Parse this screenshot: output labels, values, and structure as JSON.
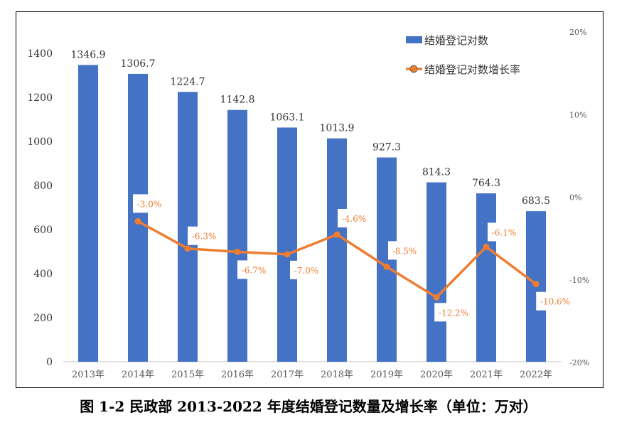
{
  "caption": "图 1-2  民政部 2013-2022 年度结婚登记数量及增长率（单位：万对）",
  "chart_data": {
    "type": "bar+line",
    "categories": [
      "2013年",
      "2014年",
      "2015年",
      "2016年",
      "2017年",
      "2018年",
      "2019年",
      "2020年",
      "2021年",
      "2022年"
    ],
    "series": [
      {
        "name": "结婚登记对数",
        "type": "bar",
        "axis": "left",
        "color": "#4472C4",
        "values": [
          1346.9,
          1306.7,
          1224.7,
          1142.8,
          1063.1,
          1013.9,
          927.3,
          814.3,
          764.3,
          683.5
        ],
        "labels": [
          "1346.9",
          "1306.7",
          "1224.7",
          "1142.8",
          "1063.1",
          "1013.9",
          "927.3",
          "814.3",
          "764.3",
          "683.5"
        ]
      },
      {
        "name": "结婚登记对数增长率",
        "type": "line",
        "axis": "right",
        "color": "#ED7D31",
        "values": [
          null,
          -3.0,
          -6.3,
          -6.7,
          -7.0,
          -4.6,
          -8.5,
          -12.2,
          -6.1,
          -10.6
        ],
        "labels": [
          "",
          "-3.0%",
          "-6.3%",
          "-6.7%",
          "-7.0%",
          "-4.6%",
          "-8.5%",
          "-12.2%",
          "-6.1%",
          "-10.6%"
        ]
      }
    ],
    "y_left": {
      "range": [
        0,
        1400
      ],
      "ticks": [
        "0",
        "200",
        "400",
        "600",
        "800",
        "1000",
        "1200",
        "1400"
      ]
    },
    "y_right": {
      "range": [
        -20,
        20
      ],
      "ticks": [
        "-20%",
        "-10%",
        "0%",
        "10%",
        "20%"
      ]
    },
    "grid": false,
    "legend": "top-right"
  }
}
